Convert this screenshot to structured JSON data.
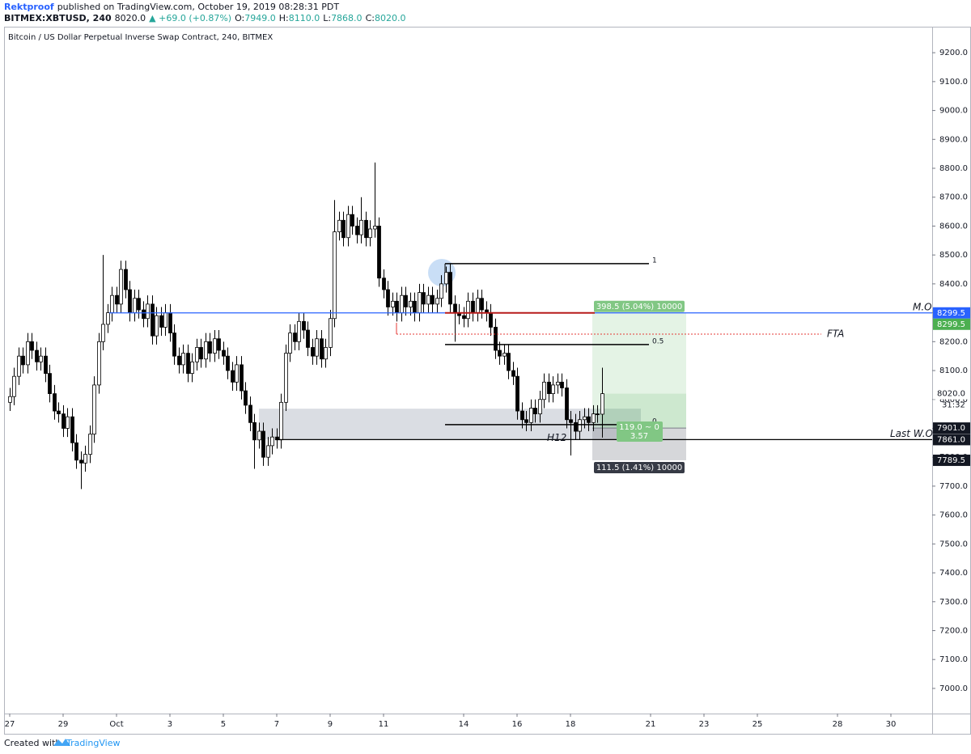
{
  "header": {
    "author": "Rektproof",
    "published": "published on TradingView.com, October 19, 2019 08:28:31 PDT",
    "symbol": "BITMEX:XBTUSD, 240",
    "last": "8020.0",
    "change": "▲ +69.0 (+0.87%)",
    "ohlc_labels": [
      "O:",
      "H:",
      "L:",
      "C:"
    ],
    "ohlc_values": [
      "7949.0",
      "8110.0",
      "7868.0",
      "8020.0"
    ]
  },
  "chart_data": {
    "type": "candlestick",
    "title": "Bitcoin / US Dollar Perpetual Inverse Swap Contract, 240, BITMEX",
    "up_color": "#ffffff",
    "down_color": "#000000",
    "grid": false,
    "open": [
      7990,
      8010,
      8080,
      8150,
      8120,
      8200,
      8170,
      8130,
      8150,
      8090,
      8020,
      7960,
      7950,
      7900,
      7940,
      7850,
      7790,
      7780,
      7810,
      7880,
      8050,
      8200,
      8260,
      8300,
      8360,
      8330,
      8450,
      8380,
      8300,
      8350,
      8310,
      8280,
      8330,
      8220,
      8290,
      8250,
      8300,
      8230,
      8150,
      8120,
      8160,
      8090,
      8130,
      8180,
      8140,
      8200,
      8160,
      8210,
      8170,
      8150,
      8100,
      8060,
      8120,
      8030,
      7980,
      7920,
      7860,
      7890,
      7800,
      7840,
      7870,
      7860,
      7990,
      8160,
      8230,
      8200,
      8270,
      8240,
      8180,
      8150,
      8210,
      8140,
      8180,
      8280,
      8580,
      8620,
      8560,
      8640,
      8600,
      8570,
      8620,
      8560,
      8590,
      8600,
      8420,
      8380,
      8320,
      8340,
      8300,
      8360,
      8320,
      8340,
      8300,
      8370,
      8330,
      8360,
      8330,
      8350,
      8400,
      8440,
      8330,
      8300,
      8290,
      8280,
      8340,
      8300,
      8350,
      8310,
      8300,
      8250,
      8170,
      8150,
      8160,
      8100,
      8080,
      7960,
      7930,
      7920,
      7970,
      7950,
      8000,
      8060,
      8020,
      8050,
      8060,
      8040,
      7930,
      7920,
      7890,
      7930,
      7940,
      7920,
      7950,
      7949
    ],
    "high": [
      8040,
      8110,
      8180,
      8180,
      8230,
      8230,
      8200,
      8180,
      8180,
      8120,
      8050,
      7990,
      7980,
      7970,
      7970,
      7880,
      7820,
      7840,
      7910,
      8080,
      8230,
      8500,
      8330,
      8390,
      8390,
      8480,
      8480,
      8410,
      8380,
      8380,
      8340,
      8360,
      8360,
      8320,
      8320,
      8330,
      8330,
      8260,
      8180,
      8190,
      8190,
      8160,
      8210,
      8210,
      8230,
      8230,
      8240,
      8240,
      8200,
      8180,
      8130,
      8150,
      8150,
      8060,
      8010,
      7950,
      7920,
      7920,
      7870,
      7900,
      7900,
      8020,
      8190,
      8260,
      8260,
      8300,
      8300,
      8270,
      8210,
      8240,
      8240,
      8210,
      8310,
      8690,
      8650,
      8650,
      8670,
      8670,
      8630,
      8700,
      8650,
      8620,
      8820,
      8630,
      8450,
      8410,
      8370,
      8370,
      8390,
      8390,
      8370,
      8370,
      8400,
      8400,
      8390,
      8390,
      8380,
      8430,
      8460,
      8470,
      8360,
      8330,
      8320,
      8370,
      8370,
      8380,
      8380,
      8340,
      8330,
      8280,
      8200,
      8190,
      8190,
      8130,
      8110,
      7990,
      7960,
      8000,
      8000,
      8030,
      8090,
      8090,
      8080,
      8090,
      8090,
      8070,
      7960,
      7950,
      7960,
      7970,
      7970,
      7980,
      7980,
      8110
    ],
    "low": [
      7960,
      7980,
      8050,
      8090,
      8090,
      8140,
      8100,
      8100,
      8060,
      7990,
      7930,
      7920,
      7870,
      7870,
      7820,
      7760,
      7690,
      7750,
      7780,
      7850,
      8020,
      8170,
      8230,
      8270,
      8300,
      8300,
      8350,
      8270,
      8270,
      8280,
      8250,
      8250,
      8190,
      8190,
      8220,
      8220,
      8200,
      8120,
      8090,
      8090,
      8060,
      8060,
      8100,
      8110,
      8110,
      8130,
      8130,
      8140,
      8120,
      8070,
      8030,
      8030,
      8000,
      7950,
      7890,
      7760,
      7830,
      7770,
      7770,
      7810,
      7830,
      7830,
      7960,
      8130,
      8170,
      8170,
      8210,
      8150,
      8120,
      8120,
      8110,
      8110,
      8150,
      8250,
      8550,
      8530,
      8530,
      8570,
      8540,
      8540,
      8530,
      8530,
      8560,
      8390,
      8350,
      8290,
      8290,
      8270,
      8270,
      8290,
      8290,
      8270,
      8270,
      8300,
      8300,
      8300,
      8300,
      8320,
      8370,
      8300,
      8200,
      8260,
      8250,
      8250,
      8270,
      8270,
      8280,
      8270,
      8220,
      8140,
      8120,
      8120,
      8070,
      8050,
      7930,
      7900,
      7890,
      7890,
      7920,
      7920,
      7970,
      7990,
      7990,
      8020,
      8010,
      7900,
      7806,
      7860,
      7860,
      7900,
      7890,
      7890,
      7919,
      7868
    ],
    "close": [
      8010,
      8080,
      8150,
      8120,
      8200,
      8170,
      8130,
      8150,
      8090,
      8020,
      7960,
      7950,
      7900,
      7940,
      7850,
      7790,
      7780,
      7810,
      7880,
      8050,
      8200,
      8260,
      8300,
      8360,
      8330,
      8450,
      8380,
      8300,
      8350,
      8310,
      8280,
      8330,
      8220,
      8290,
      8250,
      8300,
      8230,
      8150,
      8120,
      8160,
      8090,
      8130,
      8180,
      8140,
      8200,
      8160,
      8210,
      8170,
      8150,
      8100,
      8060,
      8120,
      8030,
      7980,
      7920,
      7860,
      7890,
      7800,
      7840,
      7870,
      7860,
      7990,
      8160,
      8230,
      8200,
      8270,
      8240,
      8180,
      8150,
      8210,
      8140,
      8180,
      8280,
      8580,
      8620,
      8560,
      8640,
      8600,
      8570,
      8620,
      8560,
      8590,
      8600,
      8420,
      8380,
      8320,
      8340,
      8300,
      8360,
      8320,
      8340,
      8300,
      8370,
      8330,
      8360,
      8330,
      8350,
      8400,
      8440,
      8330,
      8300,
      8290,
      8280,
      8340,
      8300,
      8350,
      8310,
      8300,
      8250,
      8170,
      8150,
      8160,
      8100,
      8080,
      7960,
      7930,
      7920,
      7970,
      7950,
      8000,
      8060,
      8020,
      8050,
      8060,
      8040,
      7930,
      7920,
      7890,
      7930,
      7940,
      7920,
      7950,
      7949,
      8020
    ],
    "ylim": [
      6913,
      9290
    ],
    "yticks": [
      {
        "value": 7000,
        "label": "7000.0"
      },
      {
        "value": 7100,
        "label": "7100.0"
      },
      {
        "value": 7200,
        "label": "7200.0"
      },
      {
        "value": 7300,
        "label": "7300.0"
      },
      {
        "value": 7400,
        "label": "7400.0"
      },
      {
        "value": 7500,
        "label": "7500.0"
      },
      {
        "value": 7600,
        "label": "7600.0"
      },
      {
        "value": 7700,
        "label": "7700.0"
      },
      {
        "value": 7800,
        "label": "7800.0"
      },
      {
        "value": 7900,
        "label": "7900.0"
      },
      {
        "value": 8000,
        "label": "8000.0"
      },
      {
        "value": 8100,
        "label": "8100.0"
      },
      {
        "value": 8200,
        "label": "8200.0"
      },
      {
        "value": 8300,
        "label": "8300.0"
      },
      {
        "value": 8400,
        "label": "8400.0"
      },
      {
        "value": 8500,
        "label": "8500.0"
      },
      {
        "value": 8600,
        "label": "8600.0"
      },
      {
        "value": 8700,
        "label": "8700.0"
      },
      {
        "value": 8800,
        "label": "8800.0"
      },
      {
        "value": 8900,
        "label": "8900.0"
      },
      {
        "value": 9000,
        "label": "9000.0"
      },
      {
        "value": 9100,
        "label": "9100.0"
      },
      {
        "value": 9200,
        "label": "9200.0"
      }
    ],
    "xlim": [
      -1.27,
      207.27
    ],
    "xticks": [
      {
        "value": 0,
        "label": "27"
      },
      {
        "value": 12,
        "label": "29"
      },
      {
        "value": 24,
        "label": "Oct"
      },
      {
        "value": 36,
        "label": "3"
      },
      {
        "value": 48,
        "label": "5"
      },
      {
        "value": 60,
        "label": "7"
      },
      {
        "value": 72,
        "label": "9"
      },
      {
        "value": 84,
        "label": "11"
      },
      {
        "value": 102,
        "label": "14"
      },
      {
        "value": 114,
        "label": "16"
      },
      {
        "value": 126,
        "label": "18"
      },
      {
        "value": 144,
        "label": "21"
      },
      {
        "value": 156,
        "label": "23"
      },
      {
        "value": 168,
        "label": "25"
      },
      {
        "value": 186,
        "label": "28"
      },
      {
        "value": 198,
        "label": "30"
      }
    ],
    "levels": [
      {
        "name": "M.O",
        "value": 8299.5,
        "label": "8299.5",
        "color": "#2962ff"
      },
      {
        "name": "Last W.O",
        "value": 7861,
        "label": "7861.0",
        "color": "#000000"
      }
    ],
    "fib": [
      {
        "label": "1",
        "value": 8470
      },
      {
        "label": "0.5",
        "value": 8190
      },
      {
        "label": "0",
        "value": 7913
      }
    ],
    "fta": {
      "name": "FTA",
      "value": 8226,
      "color": "#e53935"
    },
    "zone": {
      "name": "H12",
      "top": 7968
    },
    "position": {
      "target": {
        "value": 8299.5,
        "label": "8299.5"
      },
      "entry": {
        "value": 7901,
        "label": "7901.0"
      },
      "stop": {
        "value": 7789.5,
        "label": "7789.5"
      },
      "target_text": "398.5 (5.04%) 10000",
      "ratio_text": "119.0 ~ 0",
      "rr_text": "3.57",
      "stop_text": "111.5 (1.41%) 10000"
    },
    "last_price": {
      "label": "8020.0",
      "countdown": "31:32"
    }
  },
  "footer": {
    "prefix": "Created with",
    "brand": "TradingView"
  }
}
